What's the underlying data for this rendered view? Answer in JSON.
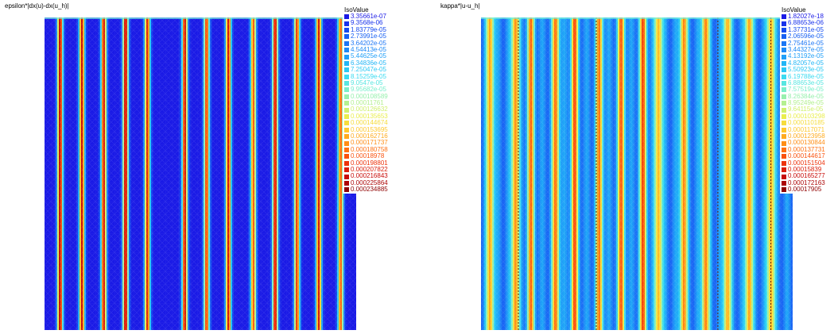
{
  "chart_data": [
    {
      "type": "heatmap",
      "title": "epsilon*|dx(u)-dx(u_h)|",
      "legend_title": "IsoValue",
      "legend_position": "top-right",
      "iso_values": [
        "3.35661e-07",
        "9.3568e-06",
        "1.83779e-05",
        "2.73991e-05",
        "3.64202e-05",
        "4.54413e-05",
        "5.44625e-05",
        "6.34836e-05",
        "7.25047e-05",
        "8.15259e-05",
        "9.0547e-05",
        "9.95682e-05",
        "0.000108589",
        "0.00011761",
        "0.000126632",
        "0.000135653",
        "0.000144674",
        "0.000153695",
        "0.000162716",
        "0.000171737",
        "0.000180758",
        "0.00018978",
        "0.000198801",
        "0.000207822",
        "0.000216843",
        "0.000225864",
        "0.000234885"
      ],
      "stripe_peaks_x": [
        0.05,
        0.12,
        0.19,
        0.26,
        0.33,
        0.45,
        0.52,
        0.59,
        0.67,
        0.74,
        0.81,
        0.88,
        0.95
      ],
      "stripe_peak_level": [
        0.95,
        0.92,
        0.9,
        0.95,
        0.88,
        0.92,
        0.85,
        0.9,
        0.8,
        0.92,
        0.85,
        0.9,
        0.8
      ],
      "stripe_width": 0.009
    },
    {
      "type": "heatmap",
      "title": "kappa*|u-u_h|",
      "legend_title": "IsoValue",
      "legend_position": "top-right",
      "iso_values": [
        "1.82027e-18",
        "6.88653e-06",
        "1.37731e-05",
        "2.06596e-05",
        "2.75461e-05",
        "3.44327e-05",
        "4.13192e-05",
        "4.82057e-05",
        "5.50923e-05",
        "6.19788e-05",
        "6.88653e-05",
        "7.57519e-05",
        "8.26384e-05",
        "8.95249e-05",
        "9.64115e-05",
        "0.000103298",
        "0.000110185",
        "0.000117071",
        "0.000123958",
        "0.000130844",
        "0.000137731",
        "0.000144617",
        "0.000151504",
        "0.00015839",
        "0.000165277",
        "0.000172163",
        "0.00017905"
      ],
      "stripe_peaks_x": [
        0.03,
        0.11,
        0.16,
        0.24,
        0.3,
        0.38,
        0.45,
        0.52,
        0.57,
        0.65,
        0.72,
        0.79,
        0.86,
        0.93
      ],
      "stripe_peak_level": [
        0.55,
        0.6,
        0.55,
        0.58,
        0.6,
        0.55,
        0.58,
        0.6,
        0.55,
        0.58,
        0.6,
        0.55,
        0.58,
        0.55
      ],
      "stripe_width": 0.012,
      "dark_lines_x": [
        0.12,
        0.37,
        0.76,
        0.93
      ]
    }
  ],
  "colors": {
    "background_low": "#0a1de0",
    "ramp": [
      "#1a1ae6",
      "#1447f0",
      "#1a70f5",
      "#1e96f8",
      "#22bff6",
      "#3fe0f0",
      "#7ef0c8",
      "#b4f090",
      "#e8f050",
      "#ffd030",
      "#ff9a18",
      "#ff6410",
      "#ea2a0a",
      "#c40808",
      "#900000"
    ]
  }
}
